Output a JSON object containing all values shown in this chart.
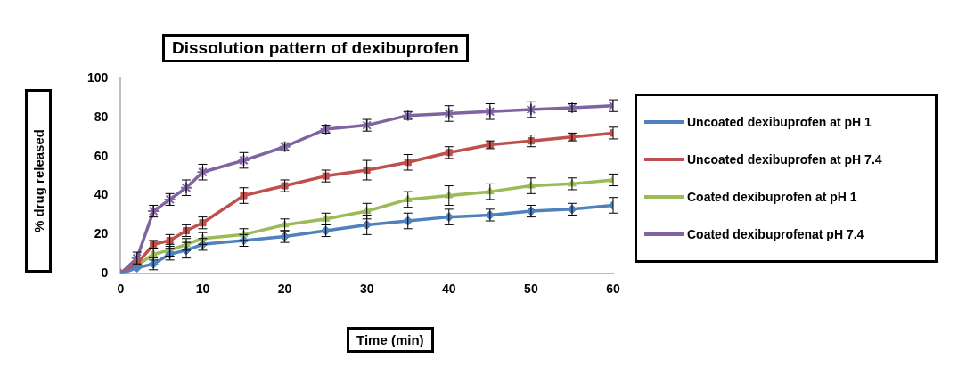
{
  "chart_data": {
    "type": "line",
    "title": "Dissolution pattern of dexibuprofen",
    "xlabel": "Time (min)",
    "ylabel": "% drug released",
    "x": [
      0,
      2,
      4,
      6,
      8,
      10,
      15,
      20,
      25,
      30,
      35,
      40,
      45,
      50,
      55,
      60
    ],
    "xlim": [
      0,
      60
    ],
    "xticks": [
      0,
      10,
      20,
      30,
      40,
      50,
      60
    ],
    "ylim": [
      0,
      100
    ],
    "yticks": [
      0,
      20,
      40,
      60,
      80,
      100
    ],
    "grid": false,
    "legend": "right",
    "series": [
      {
        "name": "Uncoated dexibuprofen at pH 1",
        "color": "#4f81bd",
        "marker": "diamond",
        "values": [
          0,
          3,
          5,
          10,
          12,
          15,
          17,
          19,
          22,
          25,
          27,
          29,
          30,
          32,
          33,
          35
        ],
        "errors": [
          null,
          null,
          3,
          3,
          4,
          3,
          3,
          3,
          3,
          5,
          4,
          4,
          3,
          3,
          3,
          4
        ]
      },
      {
        "name": "Uncoated dexibuprofen at pH 7.4",
        "color": "#c0504d",
        "marker": "square",
        "values": [
          0,
          5,
          15,
          17,
          22,
          26,
          40,
          45,
          50,
          53,
          57,
          62,
          66,
          68,
          70,
          72
        ],
        "errors": [
          null,
          null,
          2,
          3,
          3,
          3,
          4,
          3,
          3,
          5,
          4,
          3,
          2,
          3,
          2,
          3
        ]
      },
      {
        "name": "Coated dexibuprofen at pH 1",
        "color": "#9bbb59",
        "marker": "triangle",
        "values": [
          0,
          4,
          10,
          12,
          15,
          18,
          20,
          25,
          28,
          32,
          38,
          40,
          42,
          45,
          46,
          48
        ],
        "errors": [
          null,
          null,
          3,
          3,
          3,
          3,
          3,
          3,
          3,
          4,
          4,
          5,
          4,
          4,
          3,
          3
        ]
      },
      {
        "name": "Coated dexibuprofenat pH 7.4",
        "color": "#8064a2",
        "marker": "cross",
        "values": [
          0,
          8,
          32,
          38,
          44,
          52,
          58,
          65,
          74,
          76,
          81,
          82,
          83,
          84,
          85,
          86
        ],
        "errors": [
          null,
          3,
          3,
          3,
          4,
          4,
          4,
          2,
          2,
          3,
          2,
          4,
          4,
          4,
          2,
          3
        ]
      }
    ]
  }
}
